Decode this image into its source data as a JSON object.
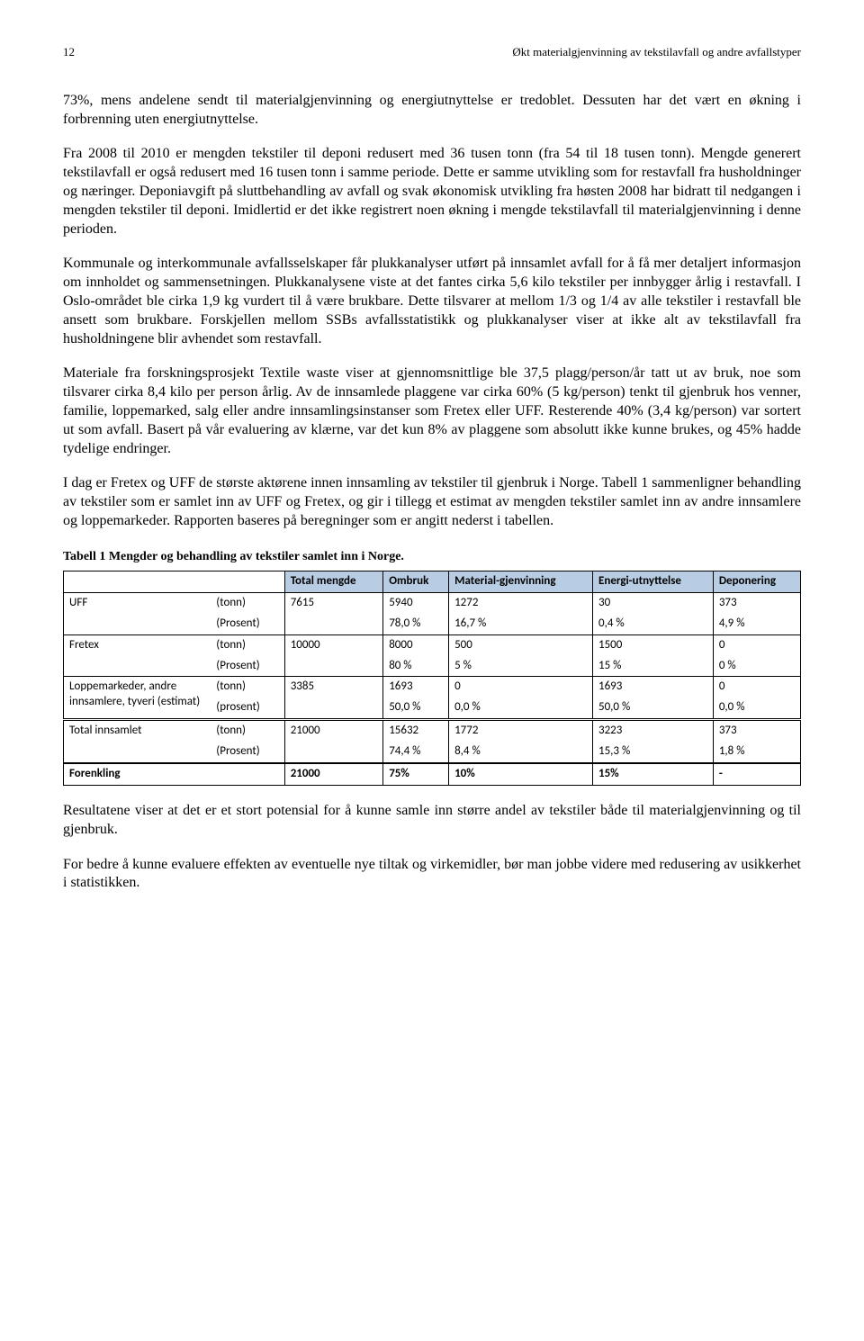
{
  "header": {
    "page_number": "12",
    "running_title": "Økt materialgjenvinning av tekstilavfall og andre avfallstyper"
  },
  "paragraphs": {
    "p1": "73%, mens andelene sendt til materialgjenvinning og energiutnyttelse er tredoblet. Dessuten har det vært en økning i forbrenning uten energiutnyttelse.",
    "p2": "Fra 2008 til 2010 er mengden tekstiler til deponi redusert med 36 tusen tonn (fra 54 til 18 tusen tonn). Mengde generert tekstilavfall er også redusert med 16 tusen tonn i samme periode. Dette er samme utvikling som for restavfall fra husholdninger og næringer. Deponiavgift på sluttbehandling av avfall og svak økonomisk utvikling fra høsten 2008 har bidratt til nedgangen i mengden tekstiler til deponi. Imidlertid er det ikke registrert noen økning i mengde tekstilavfall til materialgjenvinning i denne perioden.",
    "p3": "Kommunale og interkommunale avfallsselskaper får plukkanalyser utført på innsamlet avfall for å få mer detaljert informasjon om innholdet og sammensetningen. Plukkanalysene viste at det fantes cirka 5,6 kilo tekstiler per innbygger årlig i restavfall. I Oslo-området ble cirka 1,9 kg vurdert til å være brukbare. Dette tilsvarer at mellom 1/3 og 1/4 av alle tekstiler i restavfall ble ansett som brukbare. Forskjellen mellom SSBs avfallsstatistikk og plukkanalyser viser at ikke alt av tekstilavfall fra husholdningene blir avhendet som restavfall.",
    "p4": "Materiale fra forskningsprosjekt Textile waste viser at gjennomsnittlige ble 37,5 plagg/person/år tatt ut av bruk, noe som tilsvarer cirka 8,4 kilo per person årlig. Av de innsamlede plaggene var cirka 60% (5 kg/person) tenkt til gjenbruk hos venner, familie, loppemarked, salg eller andre innsamlingsinstanser som Fretex eller UFF. Resterende 40% (3,4 kg/person) var sortert ut som avfall. Basert på vår evaluering av klærne, var det kun 8% av plaggene som absolutt ikke kunne brukes, og 45% hadde tydelige endringer.",
    "p5": "I dag er Fretex og UFF de største aktørene innen innsamling av tekstiler til gjenbruk i Norge. Tabell 1 sammenligner behandling av tekstiler som er samlet inn av UFF og Fretex, og gir i tillegg et estimat av mengden tekstiler samlet inn av andre innsamlere og loppemarkeder. Rapporten baseres på beregninger som er angitt nederst i tabellen.",
    "p6": "Resultatene viser at det er et stort potensial for å kunne samle inn større andel av tekstiler både til materialgjenvinning og til gjenbruk.",
    "p7": "For bedre å kunne evaluere effekten av eventuelle nye tiltak og virkemidler, bør man jobbe videre med redusering av usikkerhet i statistikken."
  },
  "table": {
    "caption": "Tabell 1 Mengder og behandling av tekstiler samlet inn i Norge.",
    "header_bg": "#b8cde4",
    "columns": [
      "",
      "",
      "Total mengde",
      "Ombruk",
      "Material-gjenvinning",
      "Energi-utnyttelse",
      "Deponering"
    ],
    "rows": [
      {
        "label": "UFF",
        "unit1": "(tonn)",
        "unit2": "(Prosent)",
        "vals1": [
          "7615",
          "5940",
          "1272",
          "30",
          "373"
        ],
        "vals2": [
          "78,0 %",
          "16,7 %",
          "0,4 %",
          "4,9 %"
        ]
      },
      {
        "label": "Fretex",
        "unit1": "(tonn)",
        "unit2": "(Prosent)",
        "vals1": [
          "10000",
          "8000",
          "500",
          "1500",
          "0"
        ],
        "vals2": [
          "80 %",
          "5 %",
          "15 %",
          "0 %"
        ]
      },
      {
        "label": "Loppemarkeder, andre innsamlere, tyveri (estimat)",
        "unit1": "(tonn)",
        "unit2": "(prosent)",
        "vals1": [
          "3385",
          "1693",
          "0",
          "1693",
          "0"
        ],
        "vals2": [
          "50,0 %",
          "0,0 %",
          "50,0 %",
          "0,0 %"
        ]
      },
      {
        "label": "Total innsamlet",
        "unit1": "(tonn)",
        "unit2": "(Prosent)",
        "vals1": [
          "21000",
          "15632",
          "1772",
          "3223",
          "373"
        ],
        "vals2": [
          "74,4 %",
          "8,4 %",
          "15,3 %",
          "1,8 %"
        ]
      }
    ],
    "forenkling": {
      "label": "Forenkling",
      "vals": [
        "21000",
        "75%",
        "10%",
        "15%",
        "-"
      ]
    }
  }
}
